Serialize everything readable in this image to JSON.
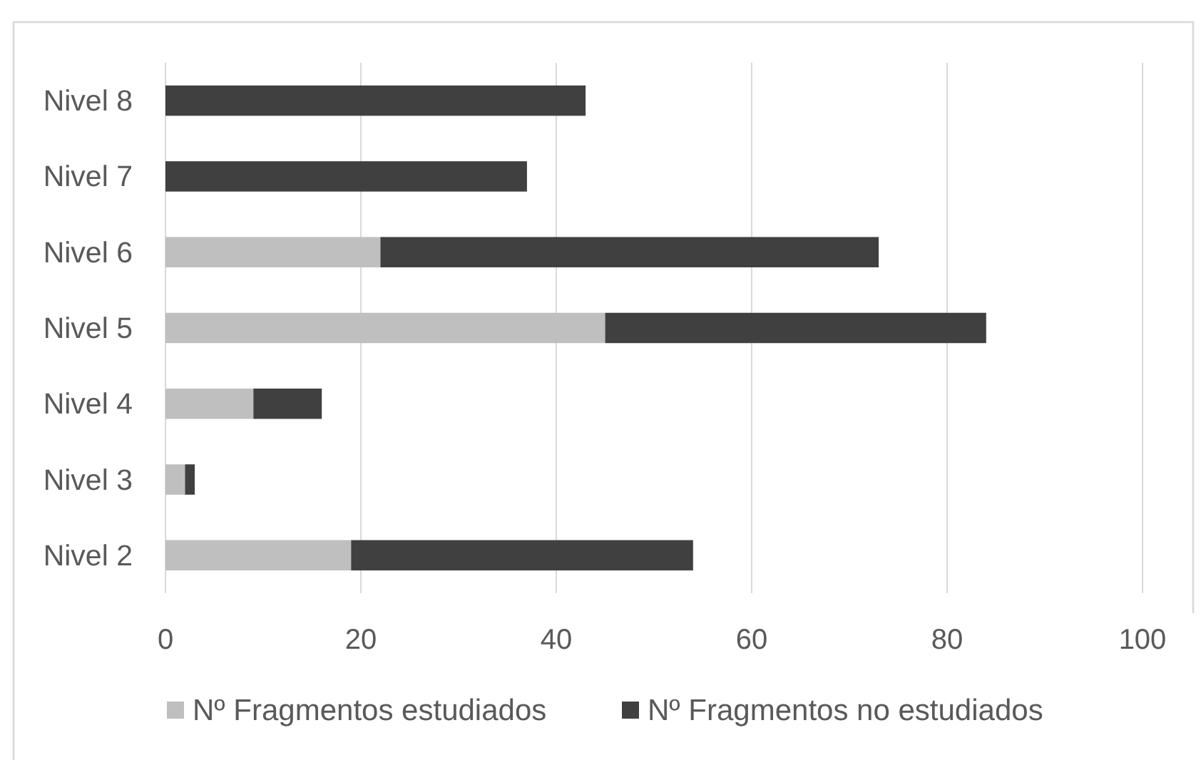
{
  "chart_data": {
    "type": "bar",
    "orientation": "horizontal",
    "stacked": true,
    "categories": [
      "Nivel 8",
      "Nivel 7",
      "Nivel 6",
      "Nivel 5",
      "Nivel 4",
      "Nivel 3",
      "Nivel 2"
    ],
    "series": [
      {
        "name": "Nº Fragmentos estudiados",
        "color": "#bfbfbf",
        "values": [
          0,
          0,
          22,
          45,
          9,
          2,
          19
        ]
      },
      {
        "name": "Nº Fragmentos no estudiados",
        "color": "#404040",
        "values": [
          43,
          37,
          51,
          39,
          7,
          1,
          35
        ]
      }
    ],
    "xlim": [
      0,
      100
    ],
    "xticks": [
      0,
      20,
      40,
      60,
      80,
      100
    ],
    "grid": "x",
    "legend": "bottom"
  }
}
